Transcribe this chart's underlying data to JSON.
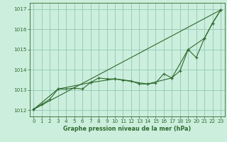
{
  "title": "Graphe pression niveau de la mer (hPa)",
  "bg_color": "#cceedd",
  "grid_color": "#99ccbb",
  "line_color": "#2d6a2d",
  "xlim": [
    -0.5,
    23.5
  ],
  "ylim": [
    1011.7,
    1017.3
  ],
  "yticks": [
    1012,
    1013,
    1014,
    1015,
    1016,
    1017
  ],
  "xticks": [
    0,
    1,
    2,
    3,
    4,
    5,
    6,
    7,
    8,
    9,
    10,
    11,
    12,
    13,
    14,
    15,
    16,
    17,
    18,
    19,
    20,
    21,
    22,
    23
  ],
  "line1_x": [
    0,
    1,
    2,
    3,
    4,
    5,
    6,
    7,
    8,
    9,
    10,
    11,
    12,
    13,
    14,
    15,
    16,
    17,
    18,
    19,
    20,
    21,
    22,
    23
  ],
  "line1_y": [
    1012.05,
    1012.3,
    1012.55,
    1013.05,
    1013.05,
    1013.1,
    1013.05,
    1013.37,
    1013.6,
    1013.55,
    1013.55,
    1013.5,
    1013.45,
    1013.3,
    1013.3,
    1013.35,
    1013.8,
    1013.6,
    1013.95,
    1015.0,
    1014.6,
    1015.55,
    1016.3,
    1016.95
  ],
  "line2_x": [
    0,
    3,
    7,
    10,
    14,
    17,
    19,
    21,
    22,
    23
  ],
  "line2_y": [
    1012.05,
    1013.05,
    1013.37,
    1013.55,
    1013.3,
    1013.6,
    1015.0,
    1015.55,
    1016.3,
    1016.95
  ],
  "line3_x": [
    0,
    23
  ],
  "line3_y": [
    1012.05,
    1016.95
  ]
}
